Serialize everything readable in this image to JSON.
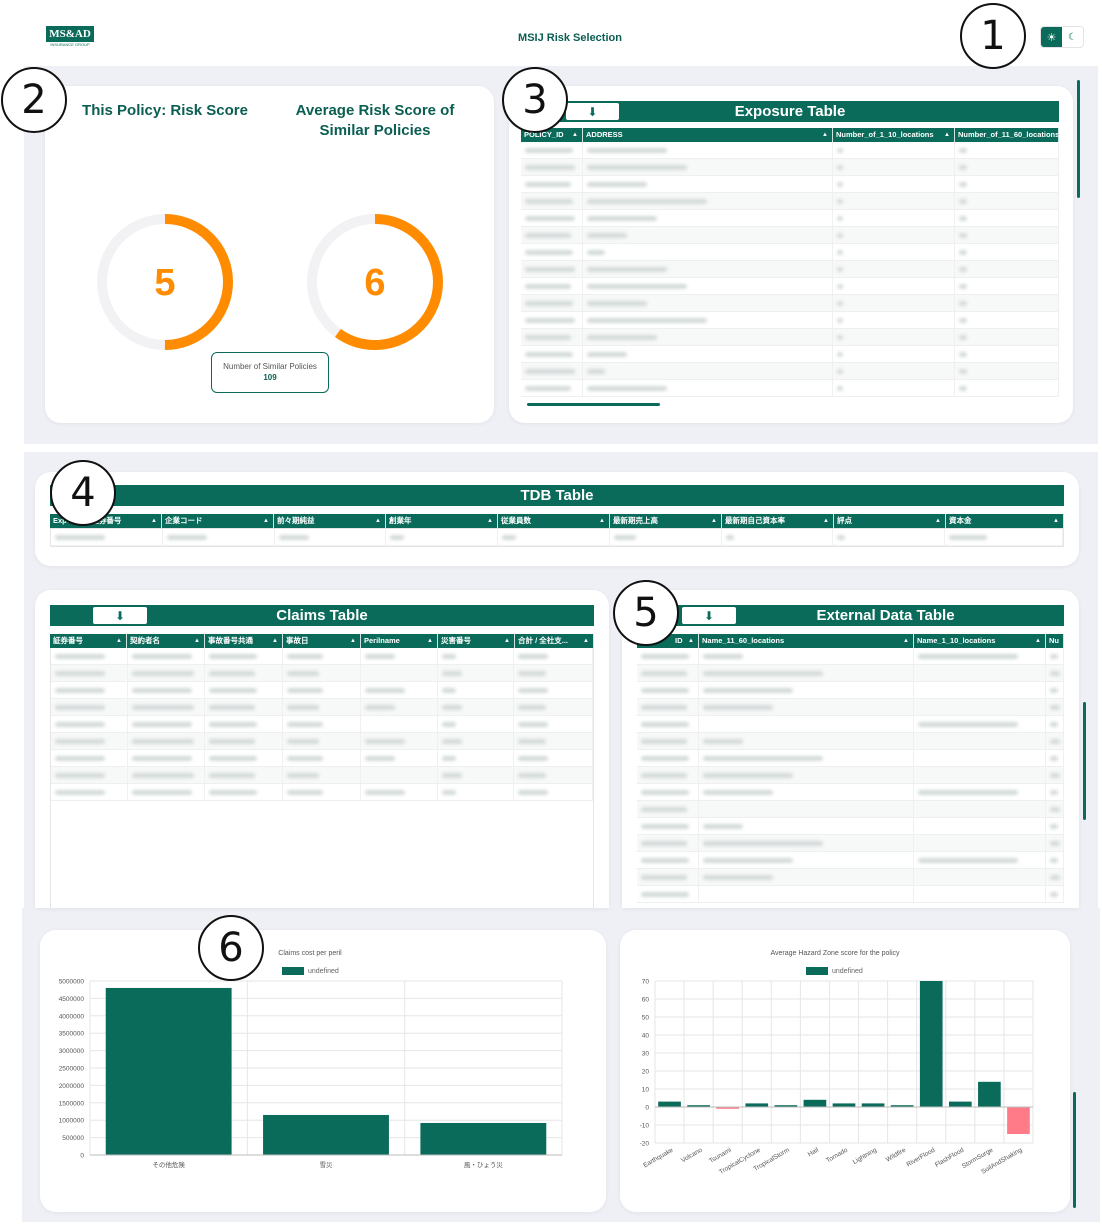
{
  "header": {
    "logo_text": "MS&AD",
    "logo_sub": "INSURANCE GROUP",
    "title": "MSIJ Risk Selection"
  },
  "callouts": [
    "1",
    "2",
    "3",
    "4",
    "5",
    "6"
  ],
  "scores": {
    "policy_label": "This Policy: Risk Score",
    "policy_score": "5",
    "policy_fraction": 0.5,
    "avg_label_line1": "Average Risk Score of",
    "avg_label_line2": "Similar Policies",
    "avg_score": "6",
    "avg_fraction": 0.6,
    "similar_label": "Number of Similar Policies",
    "similar_count": "109"
  },
  "exposure_table": {
    "title": "Exposure Table",
    "columns": [
      "POLICY_ID",
      "ADDRESS",
      "Number_of_1_10_locations",
      "Number_of_11_60_locations"
    ]
  },
  "tdb_table": {
    "title": "TDB Table",
    "columns": [
      "Exposure_証券番号",
      "企業コード",
      "前々期純益",
      "創業年",
      "従業員数",
      "最新期売上高",
      "最新期自己資本率",
      "評点",
      "資本金"
    ]
  },
  "claims_table": {
    "title": "Claims Table",
    "columns": [
      "証券番号",
      "契約者名",
      "事故番号共通",
      "事故日",
      "Perilname",
      "災害番号",
      "合計 / 全社支..."
    ]
  },
  "external_table": {
    "title": "External Data Table",
    "columns": [
      "ID",
      "Name_11_60_locations",
      "Name_1_10_locations",
      "Nu"
    ]
  },
  "chart_data": [
    {
      "type": "bar",
      "title": "Claims cost per peril",
      "legend": "undefined",
      "categories": [
        "その他危険",
        "雪災",
        "風・ひょう災"
      ],
      "values": [
        4800000,
        1150000,
        920000
      ],
      "yticks": [
        "0",
        "500000",
        "1000000",
        "1500000",
        "2000000",
        "2500000",
        "3000000",
        "3500000",
        "4000000",
        "4500000",
        "5000000"
      ],
      "ylim": [
        0,
        5000000
      ],
      "color": "#0b6b5b"
    },
    {
      "type": "bar",
      "title": "Average Hazard Zone score for the policy",
      "legend": "undefined",
      "categories": [
        "Earthquake",
        "Volcano",
        "Tsunami",
        "TropicalCyclone",
        "TropicalStorm",
        "Hail",
        "Tornado",
        "Lightning",
        "Wildfire",
        "RiverFlood",
        "FlashFlood",
        "StormSurge",
        "SoilAndShaking"
      ],
      "values": [
        3,
        1,
        -1,
        2,
        1,
        4,
        2,
        2,
        1,
        70,
        3,
        14,
        -15
      ],
      "yticks": [
        "-20",
        "-10",
        "0",
        "10",
        "20",
        "30",
        "40",
        "50",
        "60",
        "70"
      ],
      "ylim": [
        -20,
        70
      ],
      "color_positive": "#0b6b5b",
      "color_negative": "#ff7b88"
    }
  ]
}
